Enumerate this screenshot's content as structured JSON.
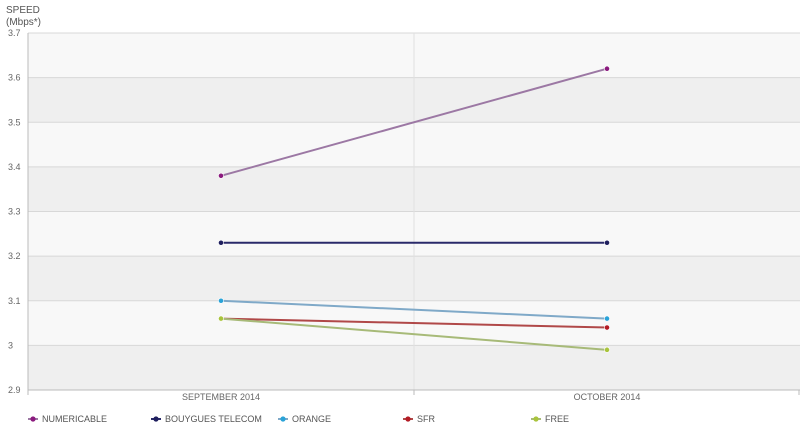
{
  "chart_data": {
    "type": "line",
    "ylabel": "SPEED",
    "yunit": "(Mbps*)",
    "categories": [
      "SEPTEMBER 2014",
      "OCTOBER 2014"
    ],
    "ylim": [
      2.9,
      3.7
    ],
    "yticks": [
      "2.9",
      "3",
      "3.1",
      "3.2",
      "3.3",
      "3.4",
      "3.5",
      "3.6",
      "3.7"
    ],
    "grid": true,
    "legend_position": "bottom",
    "series": [
      {
        "name": "NUMERICABLE",
        "color": "#8b1a7e",
        "line_color": "#9c78a4",
        "values": [
          3.38,
          3.62
        ]
      },
      {
        "name": "BOUYGUES TELECOM",
        "color": "#1f1f5e",
        "line_color": "#2a2a6a",
        "values": [
          3.23,
          3.23
        ]
      },
      {
        "name": "ORANGE",
        "color": "#2aa3d8",
        "line_color": "#7fa9c8",
        "values": [
          3.1,
          3.06
        ]
      },
      {
        "name": "SFR",
        "color": "#b31b24",
        "line_color": "#b04848",
        "values": [
          3.06,
          3.04
        ]
      },
      {
        "name": "FREE",
        "color": "#a9c43c",
        "line_color": "#a7ba78",
        "values": [
          3.06,
          2.99
        ]
      }
    ]
  }
}
